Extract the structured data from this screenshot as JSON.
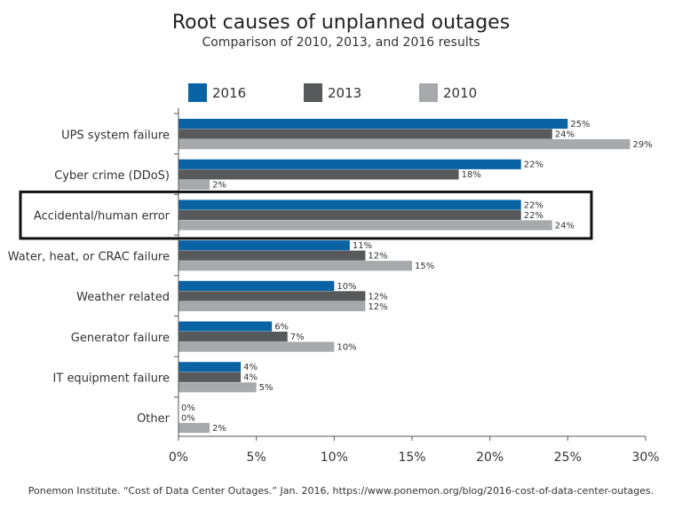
{
  "chart_data": {
    "type": "bar",
    "orientation": "horizontal",
    "title": "Root causes of unplanned outages",
    "subtitle": "Comparison of 2010, 2013, and 2016 results",
    "categories": [
      "UPS system failure",
      "Cyber crime (DDoS)",
      "Accidental/human error",
      "Water, heat, or CRAC failure",
      "Weather related",
      "Generator failure",
      "IT equipment failure",
      "Other"
    ],
    "series": [
      {
        "name": "2016",
        "color": "#0a64a4",
        "values": [
          25,
          22,
          22,
          11,
          10,
          6,
          4,
          0
        ]
      },
      {
        "name": "2013",
        "color": "#58595b",
        "values": [
          24,
          18,
          22,
          12,
          12,
          7,
          4,
          0
        ]
      },
      {
        "name": "2010",
        "color": "#a7a9ac",
        "values": [
          29,
          2,
          24,
          15,
          12,
          10,
          5,
          2
        ]
      }
    ],
    "value_suffix": "%",
    "xlim": [
      0,
      30
    ],
    "xticks": [
      "0%",
      "5%",
      "10%",
      "15%",
      "20%",
      "25%",
      "30%"
    ],
    "legend_position": "top",
    "highlighted_category": "Accidental/human error",
    "grid": false
  },
  "source_note": "Ponemon Institute. “Cost of Data Center Outages.” Jan. 2016, https://www.ponemon.org/blog/2016-cost-of-data-center-outages."
}
